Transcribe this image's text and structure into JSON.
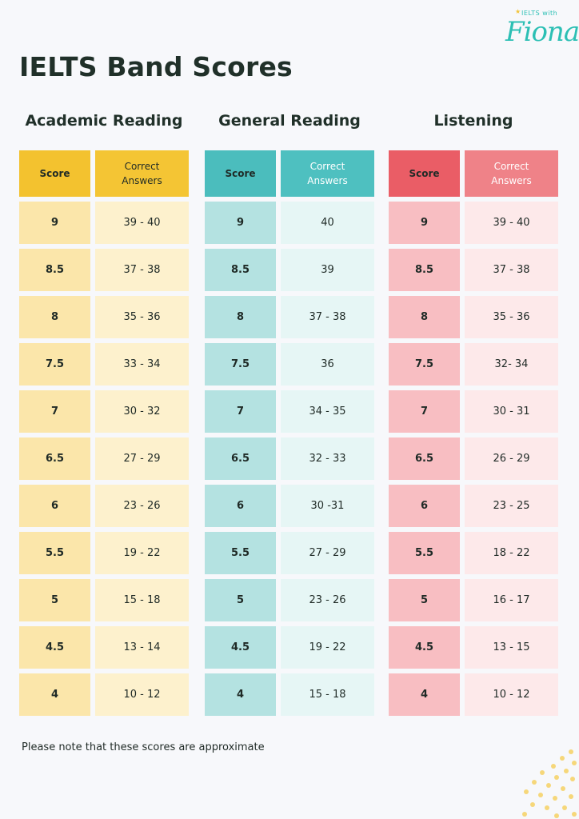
{
  "title": "IELTS Band Scores",
  "logo": {
    "small_text": "IELTS with",
    "brand_text": "Fiona"
  },
  "header_labels": {
    "score": "Score",
    "correct_line1": "Correct",
    "correct_line2": "Answers"
  },
  "sections": [
    {
      "title": "Academic Reading",
      "rows": [
        {
          "score": "9",
          "answers": "39 - 40"
        },
        {
          "score": "8.5",
          "answers": "37 - 38"
        },
        {
          "score": "8",
          "answers": "35 - 36"
        },
        {
          "score": "7.5",
          "answers": "33 - 34"
        },
        {
          "score": "7",
          "answers": "30 - 32"
        },
        {
          "score": "6.5",
          "answers": "27 - 29"
        },
        {
          "score": "6",
          "answers": "23 - 26"
        },
        {
          "score": "5.5",
          "answers": "19 - 22"
        },
        {
          "score": "5",
          "answers": "15 - 18"
        },
        {
          "score": "4.5",
          "answers": "13 - 14"
        },
        {
          "score": "4",
          "answers": "10 - 12"
        }
      ]
    },
    {
      "title": "General Reading",
      "rows": [
        {
          "score": "9",
          "answers": "40"
        },
        {
          "score": "8.5",
          "answers": "39"
        },
        {
          "score": "8",
          "answers": "37 - 38"
        },
        {
          "score": "7.5",
          "answers": "36"
        },
        {
          "score": "7",
          "answers": "34 - 35"
        },
        {
          "score": "6.5",
          "answers": "32 - 33"
        },
        {
          "score": "6",
          "answers": "30 -31"
        },
        {
          "score": "5.5",
          "answers": "27 - 29"
        },
        {
          "score": "5",
          "answers": "23 - 26"
        },
        {
          "score": "4.5",
          "answers": "19 - 22"
        },
        {
          "score": "4",
          "answers": "15 - 18"
        }
      ]
    },
    {
      "title": "Listening",
      "rows": [
        {
          "score": "9",
          "answers": "39 - 40"
        },
        {
          "score": "8.5",
          "answers": "37 - 38"
        },
        {
          "score": "8",
          "answers": "35 - 36"
        },
        {
          "score": "7.5",
          "answers": "32- 34"
        },
        {
          "score": "7",
          "answers": "30 - 31"
        },
        {
          "score": "6.5",
          "answers": "26 - 29"
        },
        {
          "score": "6",
          "answers": "23 - 25"
        },
        {
          "score": "5.5",
          "answers": "18 - 22"
        },
        {
          "score": "5",
          "answers": "16 - 17"
        },
        {
          "score": "4.5",
          "answers": "13 - 15"
        },
        {
          "score": "4",
          "answers": "10 - 12"
        }
      ]
    }
  ],
  "footnote": "Please note that these scores are approximate",
  "colors": {
    "academic_header": "#f3c22f",
    "general_header": "#4bbdbd",
    "listening_header": "#ea5d66",
    "logo": "#2bbfb4",
    "background": "#f7f8fb"
  }
}
